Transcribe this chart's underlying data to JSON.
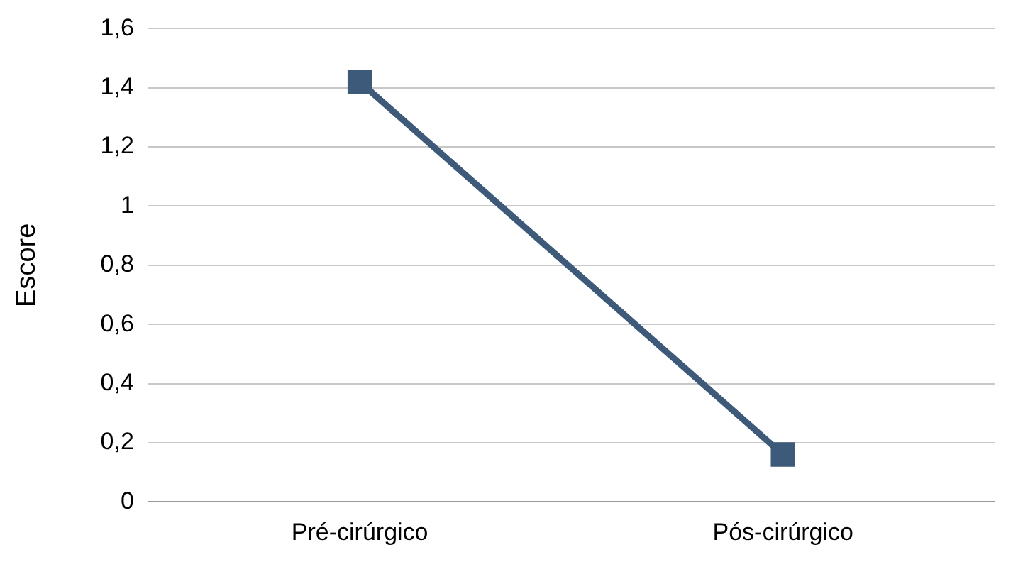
{
  "chart_data": {
    "type": "line",
    "ylabel": "Escore",
    "categories": [
      "Pré-cirúrgico",
      "Pós-cirúrgico"
    ],
    "series": [
      {
        "color": "#3d5a7a",
        "values": [
          1.42,
          0.16
        ]
      }
    ],
    "ylim": [
      0,
      1.6
    ],
    "yticks": [
      0,
      {
        "value": 0.2,
        "label": "0,2"
      },
      {
        "value": 0.4,
        "label": "0,4"
      },
      {
        "value": 0.6,
        "label": "0,6"
      },
      {
        "value": 0.8,
        "label": "0,8"
      },
      1,
      {
        "value": 1.2,
        "label": "1,2"
      },
      {
        "value": 1.4,
        "label": "1,4"
      },
      {
        "value": 1.6,
        "label": "1,6"
      }
    ],
    "grid": "y",
    "marker": "square",
    "line_style": "solid",
    "legend": false
  }
}
